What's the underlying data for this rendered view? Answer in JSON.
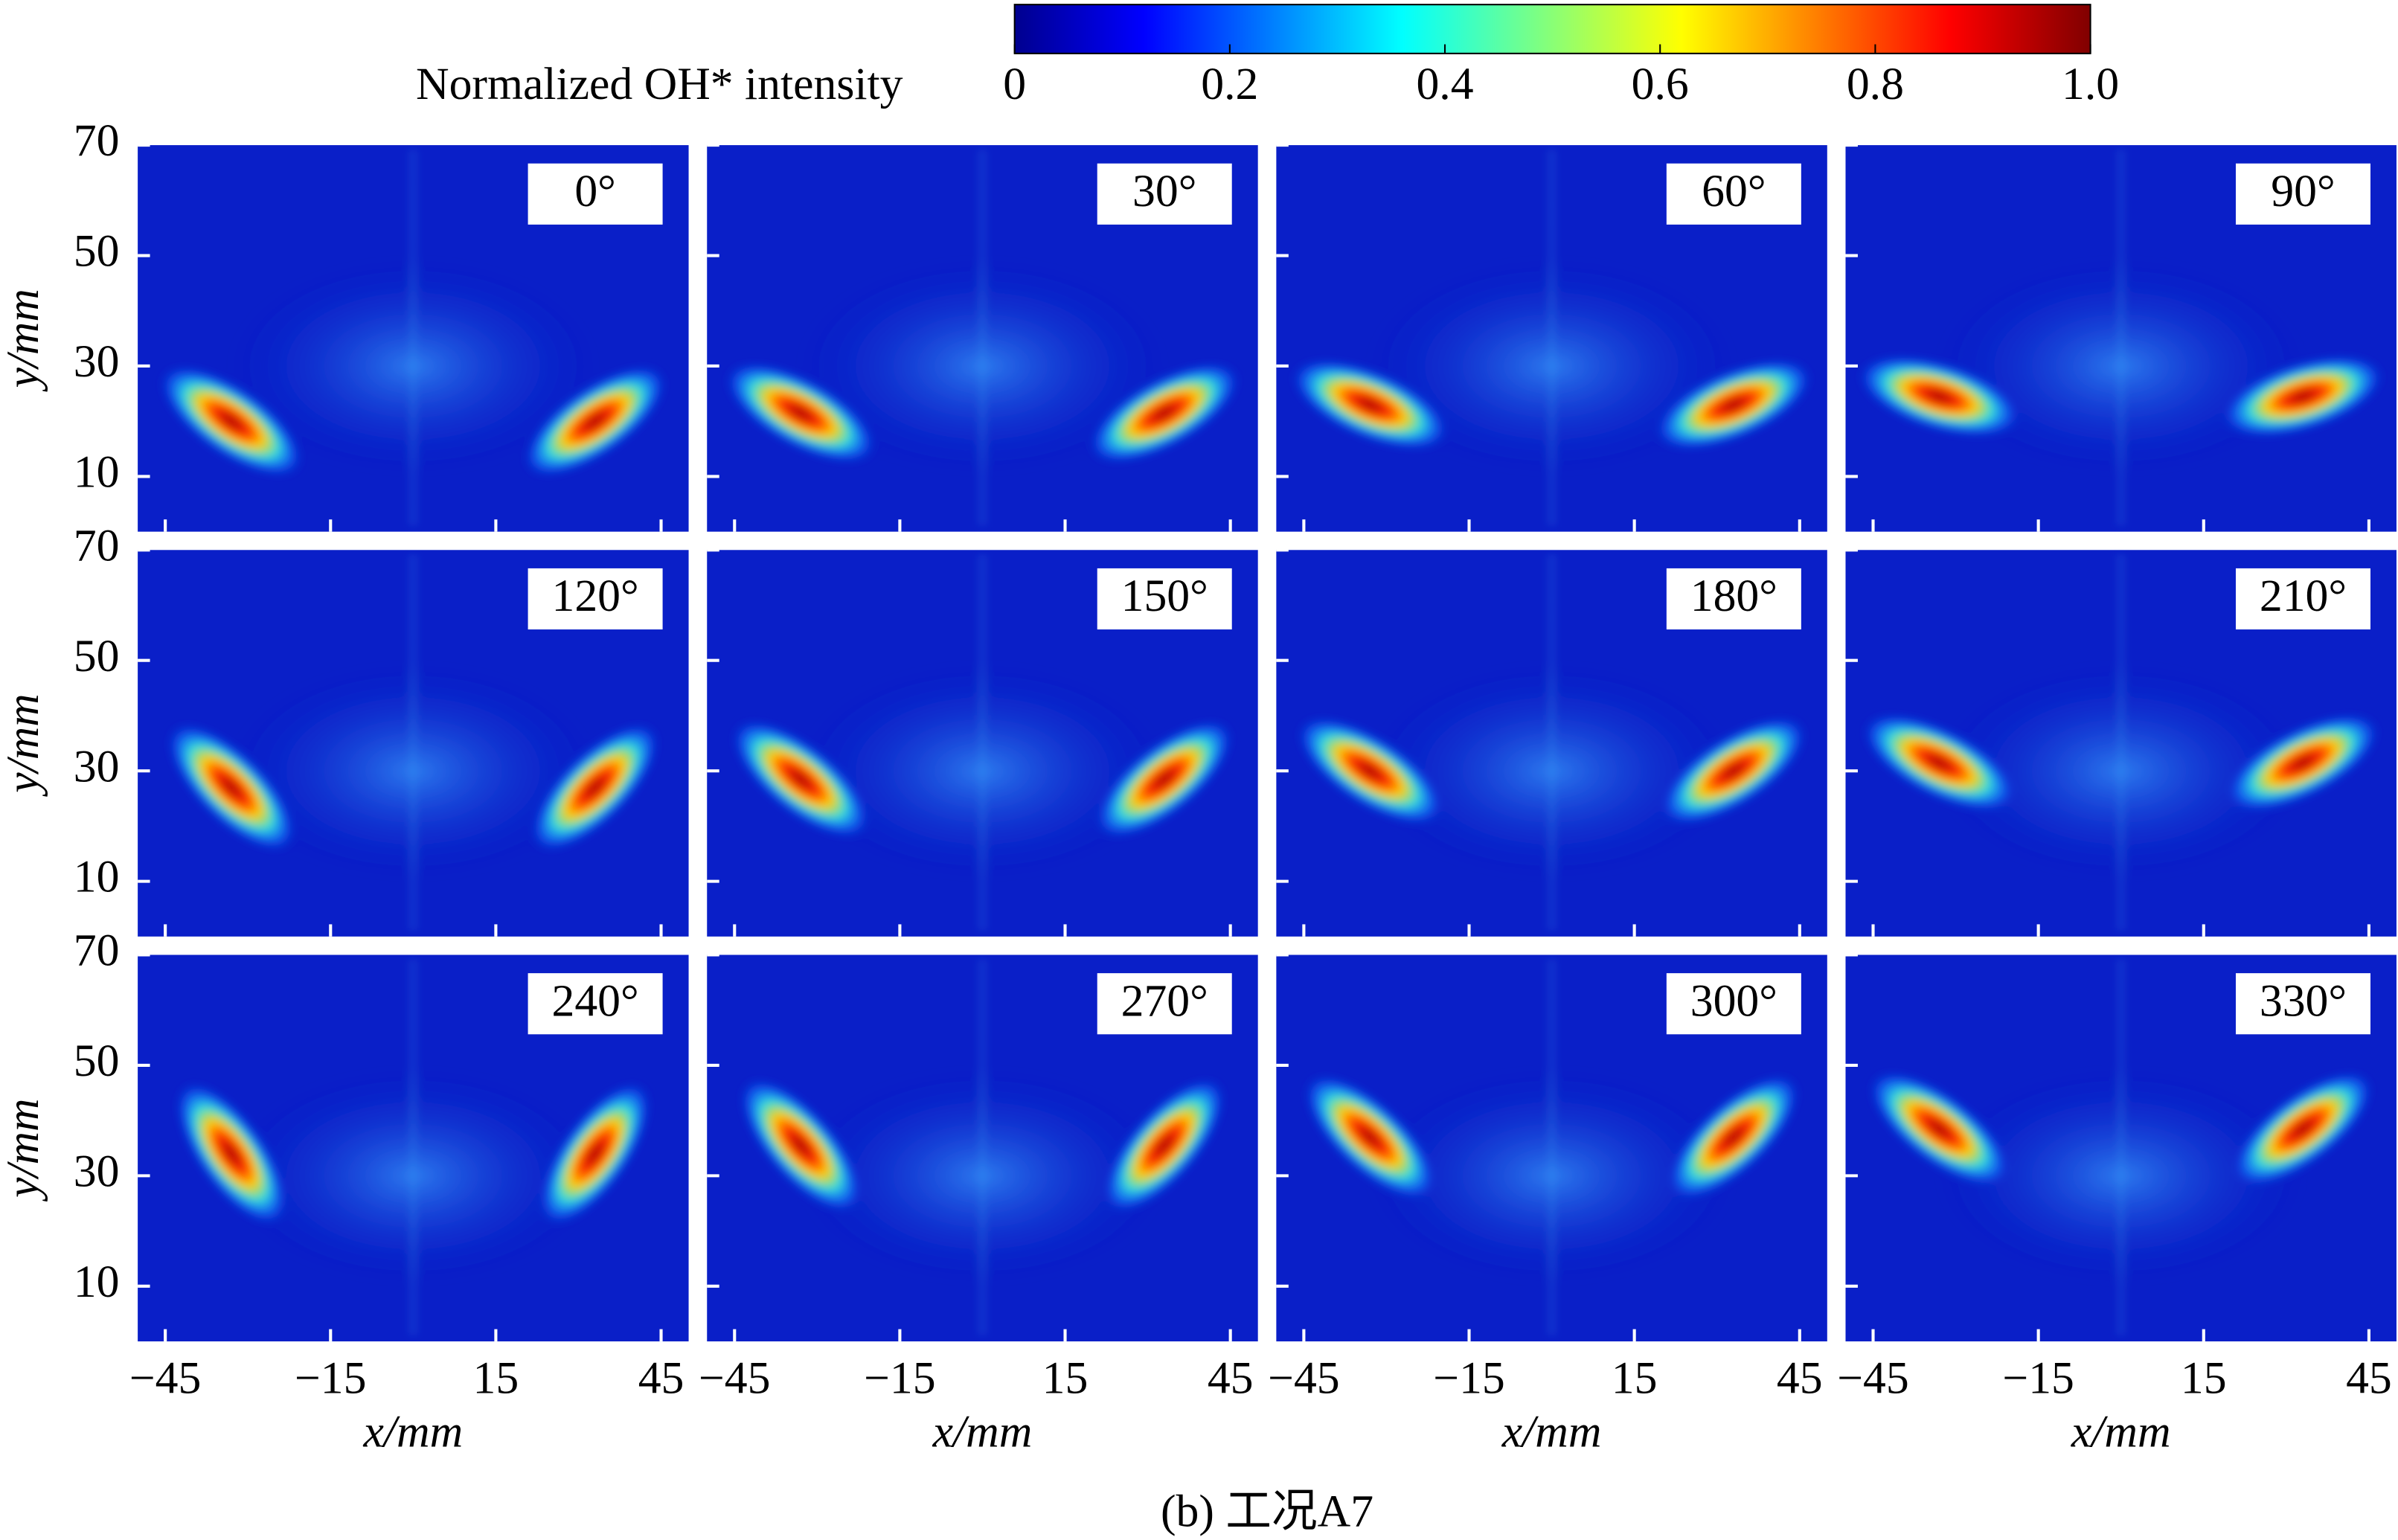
{
  "chart_data": {
    "type": "heatmap-grid",
    "caption": "(b) 工况A7",
    "colorbar": {
      "label": "Normalized OH* intensity",
      "lim": [
        0,
        1
      ],
      "ticks": [
        0,
        0.2,
        0.4,
        0.6,
        0.8,
        {
          "value": 1,
          "label": "1.0"
        }
      ]
    },
    "xlabel": "x/mm",
    "ylabel": "y/mm",
    "xlim": [
      -50,
      50
    ],
    "xticks": [
      {
        "value": -45,
        "label": "−45"
      },
      {
        "value": -15,
        "label": "−15"
      },
      15,
      45
    ],
    "ylim": [
      0,
      70
    ],
    "yticks": [
      10,
      30,
      50,
      70
    ],
    "panels": [
      "0°",
      "30°",
      "60°",
      "90°",
      "120°",
      "150°",
      "180°",
      "210°",
      "240°",
      "270°",
      "300°",
      "330°"
    ]
  }
}
